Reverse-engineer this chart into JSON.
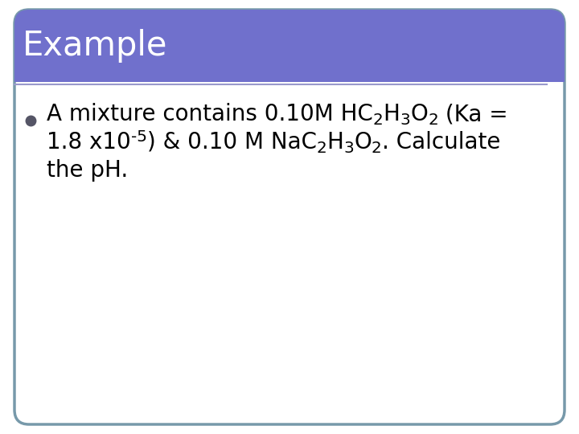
{
  "title": "Example",
  "title_bg_color": "#7070CC",
  "title_text_color": "#FFFFFF",
  "title_font_size": 30,
  "body_bg_color": "#FFFFFF",
  "border_color": "#7799AA",
  "bullet_color": "#555566",
  "font_size": 20,
  "fig_width": 7.2,
  "fig_height": 5.4,
  "line1_parts": [
    {
      "text": "A mixture contains 0.10M HC",
      "type": "normal"
    },
    {
      "text": "2",
      "type": "sub"
    },
    {
      "text": "H",
      "type": "normal"
    },
    {
      "text": "3",
      "type": "sub"
    },
    {
      "text": "O",
      "type": "normal"
    },
    {
      "text": "2",
      "type": "sub"
    },
    {
      "text": " (Ka =",
      "type": "normal"
    }
  ],
  "line2_parts": [
    {
      "text": "1.8 x10",
      "type": "normal"
    },
    {
      "text": "-5",
      "type": "super"
    },
    {
      "text": ") & 0.10 M NaC",
      "type": "normal"
    },
    {
      "text": "2",
      "type": "sub"
    },
    {
      "text": "H",
      "type": "normal"
    },
    {
      "text": "3",
      "type": "sub"
    },
    {
      "text": "O",
      "type": "normal"
    },
    {
      "text": "2",
      "type": "sub"
    },
    {
      "text": ". Calculate",
      "type": "normal"
    }
  ],
  "line3_text": "the pH."
}
